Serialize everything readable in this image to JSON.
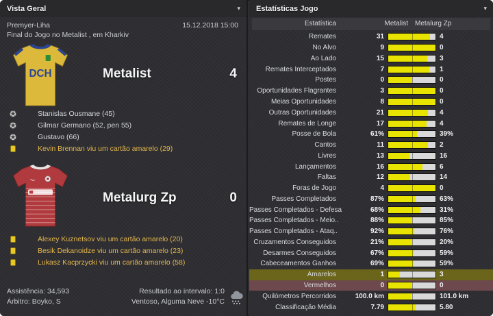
{
  "icons": {
    "dropdown_glyph": "▾"
  },
  "left_panel": {
    "title": "Vista Geral",
    "competition": "Premyer-Liha",
    "datetime": "15.12.2018 15:00",
    "subtitle": "Final do Jogo no Metalist , em Kharkiv",
    "home": {
      "name": "Metalist",
      "score": "4",
      "shirt_label": "DCH",
      "colors": {
        "body": "#dcb93a",
        "trim": "#2a4496"
      },
      "events": [
        {
          "icon": "football",
          "text": "Stanislas Ousmane (45)"
        },
        {
          "icon": "football",
          "text": "Gilmar Germano (52, pen 55)"
        },
        {
          "icon": "football",
          "text": "Gustavo (66)"
        },
        {
          "icon": "yellow-card",
          "text": "Kevin Brennan viu um cartão amarelo (29)"
        }
      ]
    },
    "away": {
      "name": "Metalurg Zp",
      "score": "0",
      "colors": {
        "body": "#b03a3d",
        "trim": "#e9e2e2"
      },
      "events": [
        {
          "icon": "yellow-card",
          "text": "Alexey Kuznetsov viu um cartão amarelo (20)"
        },
        {
          "icon": "yellow-card",
          "text": "Besik Dekanoidze viu um cartão amarelo (23)"
        },
        {
          "icon": "yellow-card",
          "text": "Lukasz Kacprzycki viu um cartão amarelo (58)"
        }
      ]
    },
    "footer": {
      "attendance": "Assistência: 34,593",
      "referee": "Árbitro: Boyko, S",
      "halftime": "Resultado ao intervalo: 1:0",
      "weather": "Ventoso, Alguma Neve -10°C"
    }
  },
  "right_panel": {
    "title": "Estatísticas Jogo",
    "columns": {
      "stat": "Estatística",
      "home": "Metalist",
      "away": "Metalurg Zp"
    },
    "colors": {
      "home_fill": "#e8e400",
      "away_fill": "#d9d9d9",
      "yellow_highlight": "#6b651b",
      "red_highlight": "#6d484d"
    },
    "chart_data": {
      "type": "table",
      "title": "Estatísticas Jogo",
      "columns": [
        "Estatística",
        "Metalist",
        "Metalurg Zp"
      ],
      "rows": [
        {
          "label": "Remates",
          "home": "31",
          "away": "4"
        },
        {
          "label": "No Alvo",
          "home": "9",
          "away": "0"
        },
        {
          "label": "Ao Lado",
          "home": "15",
          "away": "3"
        },
        {
          "label": "Remates Interceptados",
          "home": "7",
          "away": "1"
        },
        {
          "label": "Postes",
          "home": "0",
          "away": "0"
        },
        {
          "label": "Oportunidades Flagrantes",
          "home": "3",
          "away": "0"
        },
        {
          "label": "Meias Oportunidades",
          "home": "8",
          "away": "0"
        },
        {
          "label": "Outras Oportunidades",
          "home": "21",
          "away": "4"
        },
        {
          "label": "Remates de Longe",
          "home": "17",
          "away": "4"
        },
        {
          "label": "Posse de Bola",
          "home": "61%",
          "away": "39%"
        },
        {
          "label": "Cantos",
          "home": "11",
          "away": "2"
        },
        {
          "label": "Livres",
          "home": "13",
          "away": "16"
        },
        {
          "label": "Lançamentos",
          "home": "16",
          "away": "6"
        },
        {
          "label": "Faltas",
          "home": "12",
          "away": "14"
        },
        {
          "label": "Foras de Jogo",
          "home": "4",
          "away": "0"
        },
        {
          "label": "Passes Completados",
          "home": "87%",
          "away": "63%"
        },
        {
          "label": "Passes Completados - Defesa",
          "home": "68%",
          "away": "31%"
        },
        {
          "label": "Passes Completados - Meio..",
          "home": "88%",
          "away": "85%"
        },
        {
          "label": "Passes Completados - Ataq..",
          "home": "92%",
          "away": "76%"
        },
        {
          "label": "Cruzamentos Conseguidos",
          "home": "21%",
          "away": "20%"
        },
        {
          "label": "Desarmes Conseguidos",
          "home": "67%",
          "away": "59%"
        },
        {
          "label": "Cabeceamentos Ganhos",
          "home": "69%",
          "away": "59%"
        },
        {
          "label": "Amarelos",
          "home": "1",
          "away": "3",
          "highlight": "yellow"
        },
        {
          "label": "Vermelhos",
          "home": "0",
          "away": "0",
          "highlight": "red"
        },
        {
          "label": "Quilómetros Percorridos",
          "home": "100.0 km",
          "away": "101.0 km"
        },
        {
          "label": "Classificação Média",
          "home": "7.79",
          "away": "5.80"
        }
      ]
    }
  }
}
